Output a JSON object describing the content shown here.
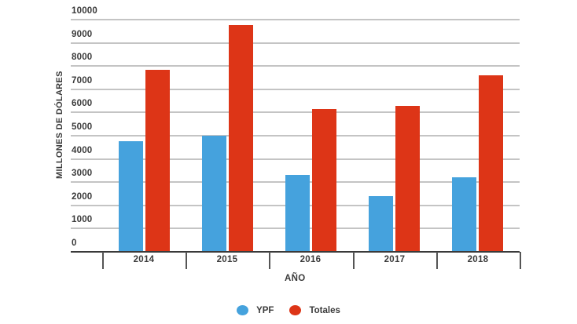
{
  "chart_data": {
    "type": "bar",
    "title": "",
    "xlabel": "AÑO",
    "ylabel": "MILLONES DE DÓLARES",
    "categories": [
      "2014",
      "2015",
      "2016",
      "2017",
      "2018"
    ],
    "series": [
      {
        "name": "YPF",
        "color": "#45a2dd",
        "values": [
          4750,
          5000,
          3300,
          2400,
          3200
        ]
      },
      {
        "name": "Totales",
        "color": "#dd3517",
        "values": [
          7850,
          9750,
          6150,
          6300,
          7600
        ]
      }
    ],
    "ylim": [
      0,
      10000
    ],
    "yticks": [
      "0",
      "1000",
      "2000",
      "3000",
      "4000",
      "5000",
      "6000",
      "7000",
      "8000",
      "9000",
      "10000"
    ],
    "grid": true,
    "legend_position": "bottom"
  },
  "legend": {
    "items": [
      {
        "label": "YPF",
        "color": "#45a2dd"
      },
      {
        "label": "Totales",
        "color": "#dd3517"
      }
    ]
  }
}
